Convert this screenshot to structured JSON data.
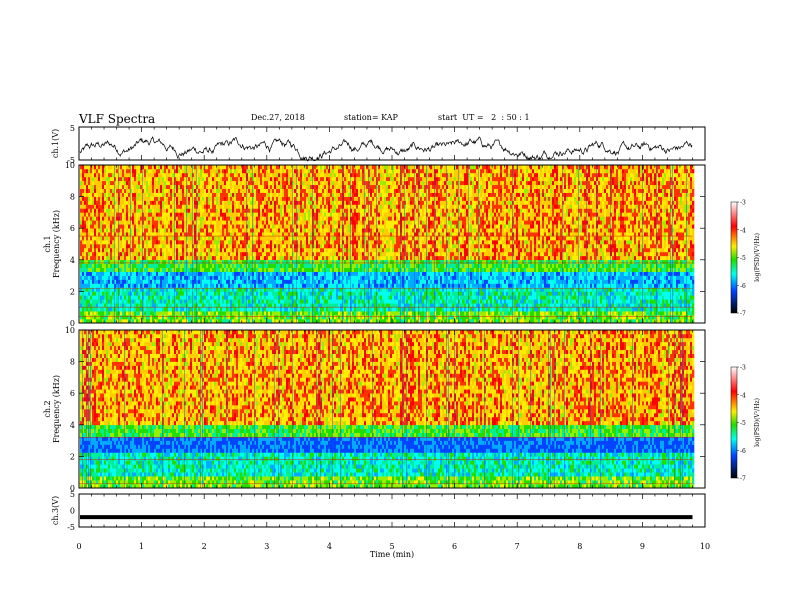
{
  "header": {
    "title": "VLF Spectra",
    "date": "Dec.27, 2018",
    "station": "station= KAP",
    "start_ut": "start  UT =   2  : 50 : 1"
  },
  "chart_data": [
    {
      "type": "line",
      "panel": "ch1-waveform",
      "ylabel": "ch.1(V)",
      "ylim": [
        -5,
        5
      ],
      "yticks": [
        "5",
        "-5"
      ],
      "xlim": [
        0,
        10
      ],
      "x_extent_min": [
        0,
        9.8
      ],
      "color": "#000000",
      "description_values": "noisy waveform oscillating roughly between -3 and 1 V"
    },
    {
      "type": "heatmap",
      "panel": "ch1-spectrogram",
      "ylabel_top": "ch.1",
      "ylabel": "Frequency (kHz)",
      "ylim": [
        0,
        10
      ],
      "yticks": [
        "10",
        "8",
        "6",
        "4",
        "2",
        "0"
      ],
      "xlim": [
        0,
        10
      ],
      "x_extent_min": [
        0,
        9.8
      ],
      "colorbar": {
        "label": "log(PSD)(V²/Hz)",
        "ticks": [
          "-3",
          "-4",
          "-5",
          "-6",
          "-7"
        ],
        "range": [
          -7,
          -3
        ]
      }
    },
    {
      "type": "heatmap",
      "panel": "ch2-spectrogram",
      "ylabel_top": "ch.2",
      "ylabel": "Frequency (kHz)",
      "ylim": [
        0,
        10
      ],
      "yticks": [
        "10",
        "8",
        "6",
        "4",
        "2",
        "0"
      ],
      "xlim": [
        0,
        10
      ],
      "x_extent_min": [
        0,
        9.8
      ],
      "colorbar": {
        "label": "log(PSD)(V²/Hz)",
        "ticks": [
          "-3",
          "-4",
          "-5",
          "-6",
          "-7"
        ],
        "range": [
          -7,
          -3
        ]
      }
    },
    {
      "type": "line",
      "panel": "ch3-waveform",
      "ylabel": "ch.3(V)",
      "ylim": [
        -5,
        5
      ],
      "yticks": [
        "5",
        "0",
        "-5"
      ],
      "xlim": [
        0,
        10
      ],
      "x_extent_min": [
        0,
        9.8
      ],
      "constant_value": -2,
      "color": "#000000"
    }
  ],
  "x_axis": {
    "label": "Time (min)",
    "ticks": [
      "0",
      "1",
      "2",
      "3",
      "4",
      "5",
      "6",
      "7",
      "8",
      "9",
      "10"
    ],
    "range": [
      0,
      10
    ]
  }
}
